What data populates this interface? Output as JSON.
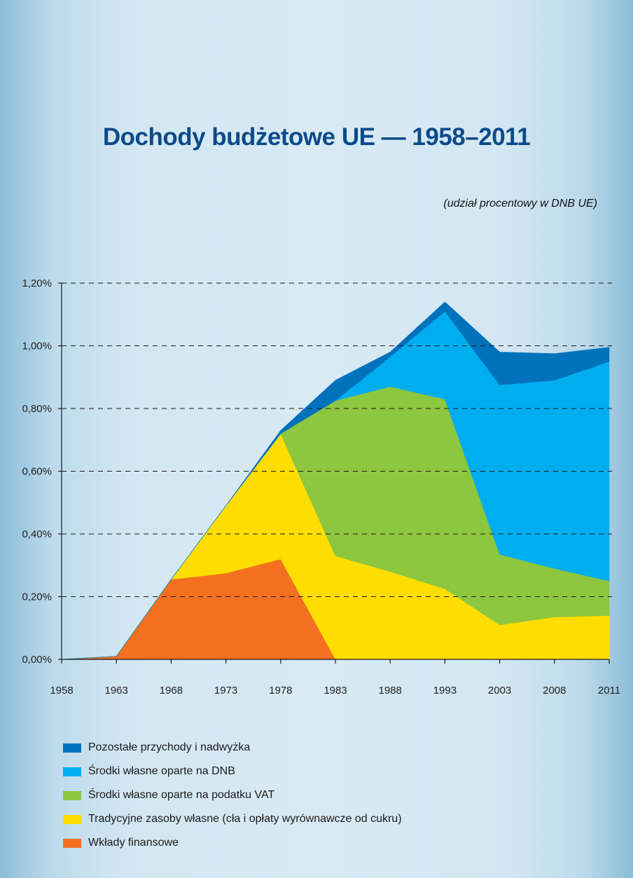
{
  "chart_data": {
    "type": "area",
    "title": "Dochody budżetowe UE — 1958–2011",
    "subtitle": "(udział procentowy w DNB UE)",
    "x": [
      "1958",
      "1963",
      "1968",
      "1973",
      "1978",
      "1983",
      "1988",
      "1993",
      "2003",
      "2008",
      "2011"
    ],
    "ylim": [
      0,
      1.2
    ],
    "yticks": [
      "0,00%",
      "0,20%",
      "0,40%",
      "0,60%",
      "0,80%",
      "1,00%",
      "1,20%"
    ],
    "grid": "dashed horizontal",
    "legend_position": "bottom-left",
    "series": [
      {
        "name": "Wkłady finansowe",
        "color": "#f37021",
        "values": [
          0,
          0.01,
          0.255,
          0.275,
          0.32,
          0,
          0,
          0,
          0,
          0,
          0
        ]
      },
      {
        "name": "Tradycyjne zasoby własne (cła i opłaty wyrównawcze od cukru)",
        "color": "#ffdd00",
        "values": [
          0,
          0,
          0,
          0.215,
          0.4,
          0.33,
          0.28,
          0.225,
          0.11,
          0.135,
          0.14
        ]
      },
      {
        "name": "Środki własne oparte na podatku VAT",
        "color": "#8dc63f",
        "values": [
          0,
          0,
          0,
          0,
          0,
          0.495,
          0.59,
          0.605,
          0.225,
          0.155,
          0.11
        ]
      },
      {
        "name": "Środki własne oparte na DNB",
        "color": "#00aeef",
        "values": [
          0,
          0,
          0,
          0,
          0,
          0,
          0.095,
          0.28,
          0.54,
          0.6,
          0.7
        ]
      },
      {
        "name": "Pozostałe przychody i nadwyżka",
        "color": "#0072bc",
        "values": [
          0,
          0,
          0,
          0,
          0.01,
          0.065,
          0.015,
          0.03,
          0.105,
          0.085,
          0.045
        ]
      }
    ]
  },
  "legend_order": [
    4,
    3,
    2,
    1,
    0
  ]
}
